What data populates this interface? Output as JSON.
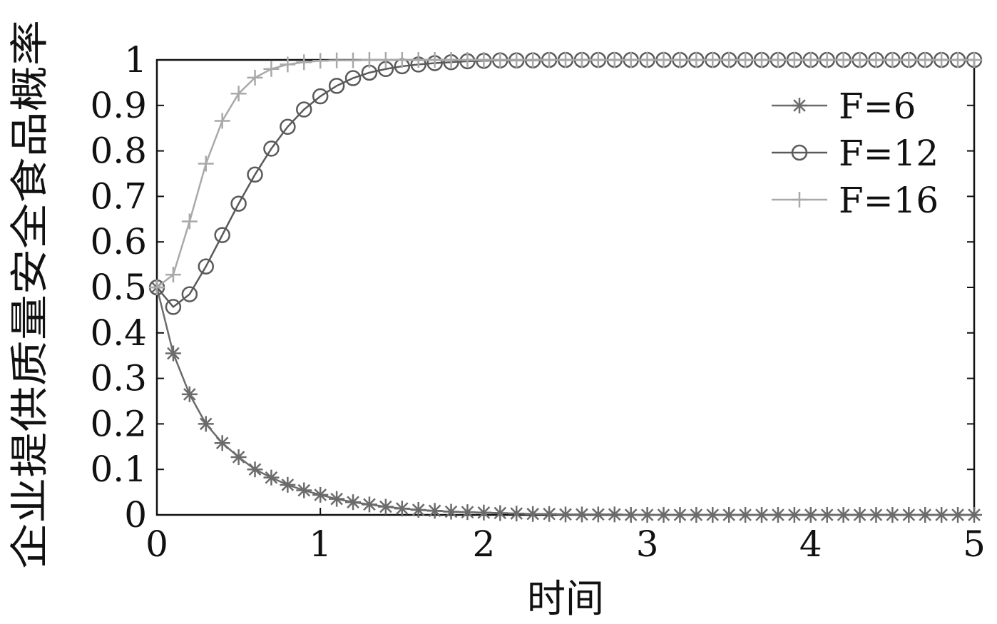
{
  "chart_data": {
    "type": "line",
    "title": "",
    "xlabel": "时间",
    "ylabel": "企业提供质量安全食品概率",
    "xlim": [
      0,
      5
    ],
    "ylim": [
      0,
      1
    ],
    "x_ticks": [
      "0",
      "1",
      "2",
      "3",
      "4",
      "5"
    ],
    "y_ticks": [
      "0",
      "0.1",
      "0.2",
      "0.3",
      "0.4",
      "0.5",
      "0.6",
      "0.7",
      "0.8",
      "0.9",
      "1"
    ],
    "grid": false,
    "legend_position": "top-right",
    "series": [
      {
        "name": "F=6",
        "marker": "asterisk",
        "color": "#6b6b6b",
        "x": [
          0,
          0.1,
          0.2,
          0.3,
          0.4,
          0.5,
          0.6,
          0.7,
          0.8,
          0.9,
          1.0,
          1.1,
          1.2,
          1.3,
          1.4,
          1.5,
          1.6,
          1.7,
          1.8,
          1.9,
          2.0,
          2.1,
          2.2,
          2.3,
          2.4,
          2.5,
          2.6,
          2.7,
          2.8,
          2.9,
          3.0,
          3.1,
          3.2,
          3.3,
          3.4,
          3.5,
          3.6,
          3.7,
          3.8,
          3.9,
          4.0,
          4.1,
          4.2,
          4.3,
          4.4,
          4.5,
          4.6,
          4.7,
          4.8,
          4.9,
          5.0
        ],
        "y": [
          0.5,
          0.355,
          0.265,
          0.2,
          0.158,
          0.127,
          0.1,
          0.082,
          0.066,
          0.054,
          0.044,
          0.035,
          0.028,
          0.023,
          0.018,
          0.014,
          0.011,
          0.009,
          0.007,
          0.006,
          0.005,
          0.004,
          0.003,
          0.002,
          0.002,
          0.001,
          0.001,
          0.001,
          0.001,
          0.0,
          0.0,
          0.0,
          0.0,
          0.0,
          0.0,
          0.0,
          0.0,
          0.0,
          0.0,
          0.0,
          0.0,
          0.0,
          0.0,
          0.0,
          0.0,
          0.0,
          0.0,
          0.0,
          0.0,
          0.0,
          0.0
        ]
      },
      {
        "name": "F=12",
        "marker": "circle",
        "color": "#5a5a5a",
        "x": [
          0,
          0.1,
          0.2,
          0.3,
          0.4,
          0.5,
          0.6,
          0.7,
          0.8,
          0.9,
          1.0,
          1.1,
          1.2,
          1.3,
          1.4,
          1.5,
          1.6,
          1.7,
          1.8,
          1.9,
          2.0,
          2.1,
          2.2,
          2.3,
          2.4,
          2.5,
          2.6,
          2.7,
          2.8,
          2.9,
          3.0,
          3.1,
          3.2,
          3.3,
          3.4,
          3.5,
          3.6,
          3.7,
          3.8,
          3.9,
          4.0,
          4.1,
          4.2,
          4.3,
          4.4,
          4.5,
          4.6,
          4.7,
          4.8,
          4.9,
          5.0
        ],
        "y": [
          0.5,
          0.457,
          0.485,
          0.546,
          0.615,
          0.684,
          0.748,
          0.805,
          0.853,
          0.891,
          0.92,
          0.943,
          0.96,
          0.972,
          0.98,
          0.986,
          0.99,
          0.993,
          0.995,
          0.997,
          0.998,
          0.999,
          0.999,
          0.999,
          1.0,
          1.0,
          1.0,
          1.0,
          1.0,
          1.0,
          1.0,
          1.0,
          1.0,
          1.0,
          1.0,
          1.0,
          1.0,
          1.0,
          1.0,
          1.0,
          1.0,
          1.0,
          1.0,
          1.0,
          1.0,
          1.0,
          1.0,
          1.0,
          1.0,
          1.0,
          1.0
        ]
      },
      {
        "name": "F=16",
        "marker": "plus",
        "color": "#a9a9a9",
        "x": [
          0,
          0.1,
          0.2,
          0.3,
          0.4,
          0.5,
          0.6,
          0.7,
          0.8,
          0.9,
          1.0,
          1.1,
          1.2,
          1.3,
          1.4,
          1.5,
          1.6,
          1.7,
          1.8,
          1.9,
          2.0,
          2.1,
          2.2,
          2.3,
          2.4,
          2.5,
          2.6,
          2.7,
          2.8,
          2.9,
          3.0,
          3.1,
          3.2,
          3.3,
          3.4,
          3.5,
          3.6,
          3.7,
          3.8,
          3.9,
          4.0,
          4.1,
          4.2,
          4.3,
          4.4,
          4.5,
          4.6,
          4.7,
          4.8,
          4.9,
          5.0
        ],
        "y": [
          0.5,
          0.528,
          0.645,
          0.772,
          0.866,
          0.926,
          0.961,
          0.98,
          0.99,
          0.995,
          0.998,
          0.999,
          0.999,
          1.0,
          1.0,
          1.0,
          1.0,
          1.0,
          1.0,
          1.0,
          1.0,
          1.0,
          1.0,
          1.0,
          1.0,
          1.0,
          1.0,
          1.0,
          1.0,
          1.0,
          1.0,
          1.0,
          1.0,
          1.0,
          1.0,
          1.0,
          1.0,
          1.0,
          1.0,
          1.0,
          1.0,
          1.0,
          1.0,
          1.0,
          1.0,
          1.0,
          1.0,
          1.0,
          1.0,
          1.0,
          1.0
        ]
      }
    ]
  }
}
